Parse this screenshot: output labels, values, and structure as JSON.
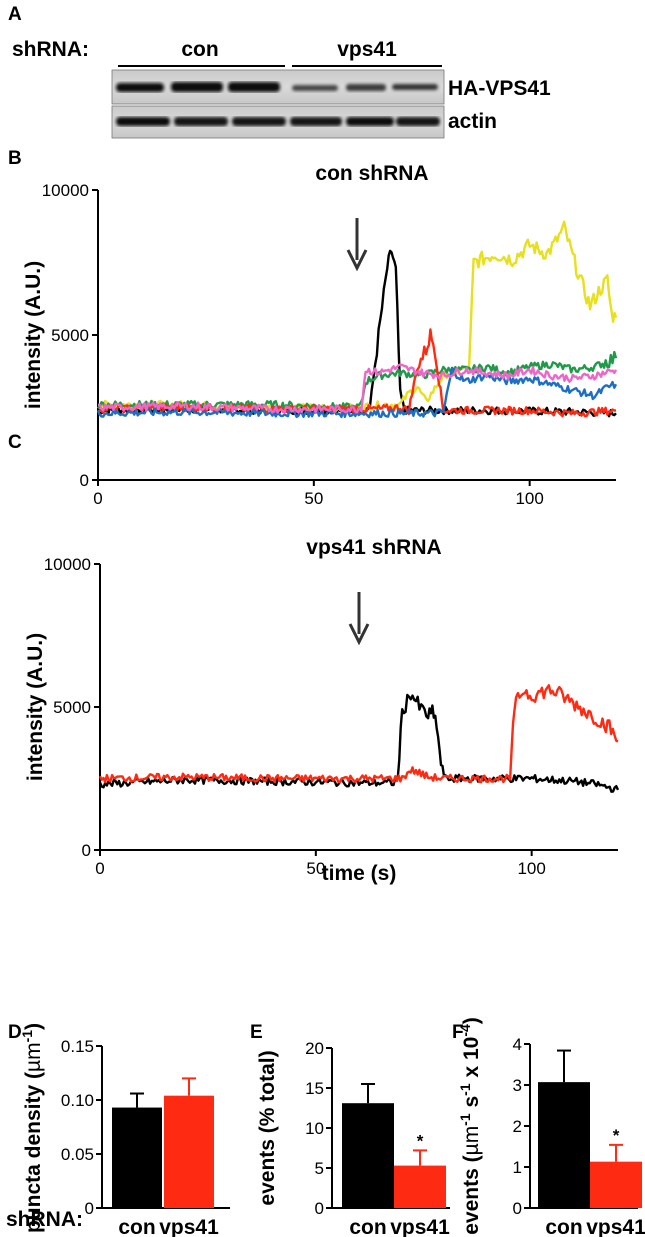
{
  "panel_a": {
    "letter": "A",
    "shrna_label": "shRNA:",
    "group_con": "con",
    "group_vps41": "vps41",
    "band_top_label": "HA-VPS41",
    "band_bottom_label": "actin"
  },
  "chart_data": [
    {
      "type": "line",
      "panel": "B",
      "title": "con shRNA",
      "xlabel": "",
      "ylabel": "intensity (A.U.)",
      "xlim": [
        0,
        120
      ],
      "ylim": [
        0,
        10000
      ],
      "xticks": [
        "0",
        "50",
        "100"
      ],
      "yticks": [
        "0",
        "5000",
        "10000"
      ],
      "arrow_at_x": 60,
      "series": [
        {
          "color": "#000000",
          "points": [
            [
              0,
              2400
            ],
            [
              20,
              2450
            ],
            [
              40,
              2400
            ],
            [
              60,
              2400
            ],
            [
              63,
              2500
            ],
            [
              65,
              5000
            ],
            [
              67,
              7300
            ],
            [
              68,
              7900
            ],
            [
              69,
              7200
            ],
            [
              70,
              3000
            ],
            [
              71,
              2400
            ],
            [
              90,
              2400
            ],
            [
              110,
              2350
            ],
            [
              120,
              2300
            ]
          ]
        },
        {
          "color": "#e6e01e",
          "points": [
            [
              0,
              2600
            ],
            [
              20,
              2600
            ],
            [
              40,
              2500
            ],
            [
              60,
              2500
            ],
            [
              66,
              2600
            ],
            [
              70,
              2600
            ],
            [
              72,
              3000
            ],
            [
              74,
              3200
            ],
            [
              76,
              2700
            ],
            [
              80,
              3600
            ],
            [
              84,
              3800
            ],
            [
              86,
              3900
            ],
            [
              87,
              7500
            ],
            [
              92,
              7800
            ],
            [
              96,
              7600
            ],
            [
              100,
              8100
            ],
            [
              104,
              7800
            ],
            [
              106,
              8200
            ],
            [
              108,
              8700
            ],
            [
              110,
              7700
            ],
            [
              112,
              6800
            ],
            [
              114,
              6000
            ],
            [
              116,
              6500
            ],
            [
              118,
              6900
            ],
            [
              119,
              5700
            ],
            [
              120,
              5600
            ]
          ]
        },
        {
          "color": "#1f9a4a",
          "points": [
            [
              0,
              2600
            ],
            [
              20,
              2600
            ],
            [
              40,
              2600
            ],
            [
              60,
              2500
            ],
            [
              61,
              2600
            ],
            [
              62,
              3400
            ],
            [
              65,
              3600
            ],
            [
              70,
              3700
            ],
            [
              75,
              3600
            ],
            [
              80,
              3800
            ],
            [
              86,
              3800
            ],
            [
              90,
              3900
            ],
            [
              95,
              3700
            ],
            [
              100,
              3900
            ],
            [
              105,
              4000
            ],
            [
              110,
              3800
            ],
            [
              115,
              3900
            ],
            [
              118,
              4100
            ],
            [
              120,
              4200
            ]
          ]
        },
        {
          "color": "#ff2a12",
          "points": [
            [
              0,
              2450
            ],
            [
              20,
              2500
            ],
            [
              40,
              2450
            ],
            [
              60,
              2450
            ],
            [
              65,
              2450
            ],
            [
              70,
              2500
            ],
            [
              72,
              2400
            ],
            [
              74,
              3900
            ],
            [
              76,
              4500
            ],
            [
              77,
              5000
            ],
            [
              78,
              4600
            ],
            [
              79,
              3400
            ],
            [
              80,
              2400
            ],
            [
              90,
              2400
            ],
            [
              100,
              2400
            ],
            [
              110,
              2300
            ],
            [
              120,
              2400
            ]
          ]
        },
        {
          "color": "#1c6fc4",
          "points": [
            [
              0,
              2300
            ],
            [
              20,
              2350
            ],
            [
              40,
              2300
            ],
            [
              60,
              2300
            ],
            [
              70,
              2300
            ],
            [
              75,
              2300
            ],
            [
              78,
              2300
            ],
            [
              80,
              2350
            ],
            [
              82,
              3800
            ],
            [
              85,
              3400
            ],
            [
              90,
              3600
            ],
            [
              95,
              3400
            ],
            [
              100,
              3500
            ],
            [
              105,
              3300
            ],
            [
              110,
              3100
            ],
            [
              115,
              2900
            ],
            [
              118,
              3200
            ],
            [
              120,
              3300
            ]
          ]
        },
        {
          "color": "#ee66c8",
          "points": [
            [
              0,
              2500
            ],
            [
              20,
              2550
            ],
            [
              40,
              2450
            ],
            [
              60,
              2450
            ],
            [
              61,
              2500
            ],
            [
              62,
              3800
            ],
            [
              65,
              3700
            ],
            [
              70,
              3900
            ],
            [
              75,
              3700
            ],
            [
              80,
              3600
            ],
            [
              85,
              3800
            ],
            [
              90,
              3700
            ],
            [
              95,
              3600
            ],
            [
              100,
              3800
            ],
            [
              105,
              3600
            ],
            [
              110,
              3500
            ],
            [
              115,
              3600
            ],
            [
              120,
              3800
            ]
          ]
        }
      ]
    },
    {
      "type": "line",
      "panel": "C",
      "title": "vps41 shRNA",
      "xlabel": "time (s)",
      "ylabel": "intensity (A.U.)",
      "xlim": [
        0,
        120
      ],
      "ylim": [
        0,
        10000
      ],
      "xticks": [
        "0",
        "50",
        "100"
      ],
      "yticks": [
        "0",
        "5000",
        "10000"
      ],
      "arrow_at_x": 60,
      "series": [
        {
          "color": "#000000",
          "points": [
            [
              0,
              2300
            ],
            [
              20,
              2450
            ],
            [
              40,
              2400
            ],
            [
              60,
              2350
            ],
            [
              68,
              2350
            ],
            [
              69,
              2500
            ],
            [
              70,
              4800
            ],
            [
              72,
              5500
            ],
            [
              74,
              5000
            ],
            [
              76,
              4700
            ],
            [
              77,
              4800
            ],
            [
              78,
              4400
            ],
            [
              79,
              3000
            ],
            [
              80,
              2500
            ],
            [
              90,
              2500
            ],
            [
              100,
              2500
            ],
            [
              110,
              2400
            ],
            [
              115,
              2300
            ],
            [
              120,
              2100
            ]
          ]
        },
        {
          "color": "#ff2a12",
          "points": [
            [
              0,
              2500
            ],
            [
              20,
              2550
            ],
            [
              40,
              2500
            ],
            [
              60,
              2500
            ],
            [
              70,
              2500
            ],
            [
              72,
              2800
            ],
            [
              74,
              2700
            ],
            [
              76,
              2550
            ],
            [
              80,
              2500
            ],
            [
              95,
              2500
            ],
            [
              96,
              5000
            ],
            [
              98,
              5600
            ],
            [
              100,
              5400
            ],
            [
              104,
              5600
            ],
            [
              106,
              5500
            ],
            [
              108,
              5300
            ],
            [
              110,
              5100
            ],
            [
              114,
              4700
            ],
            [
              116,
              4500
            ],
            [
              118,
              4300
            ],
            [
              120,
              3800
            ]
          ]
        }
      ]
    },
    {
      "type": "bar",
      "panel": "D",
      "xlabel": "",
      "ylabel_prefix": "puncta density (",
      "ylabel_unit": "µm",
      "ylabel_exp": "-1",
      "ylabel_suffix": ")",
      "categories_prefix": "shRNA:",
      "categories": [
        "con",
        "vps41"
      ],
      "values": [
        0.093,
        0.104
      ],
      "errors": [
        0.013,
        0.016
      ],
      "colors": [
        "#000000",
        "#ff2a12"
      ],
      "ylim": [
        0,
        0.15
      ],
      "yticks": [
        "0",
        "0.05",
        "0.10",
        "0.15"
      ]
    },
    {
      "type": "bar",
      "panel": "E",
      "xlabel": "",
      "ylabel": "events (% total)",
      "categories": [
        "con",
        "vps41"
      ],
      "values": [
        13.1,
        5.3
      ],
      "errors": [
        2.4,
        1.9
      ],
      "colors": [
        "#000000",
        "#ff2a12"
      ],
      "significance": [
        "",
        "*"
      ],
      "ylim": [
        0,
        20
      ],
      "yticks": [
        "0",
        "5",
        "10",
        "15",
        "20"
      ]
    },
    {
      "type": "bar",
      "panel": "F",
      "xlabel": "",
      "ylabel_prefix": "events (",
      "ylabel_unit": "µm",
      "ylabel_exp": "-1",
      "ylabel_unit2": " s",
      "ylabel_exp2": "-1",
      "ylabel_mid": " x 10",
      "ylabel_exp3": "-4",
      "ylabel_suffix": ")",
      "categories": [
        "con",
        "vps41"
      ],
      "values": [
        3.07,
        1.13
      ],
      "errors": [
        0.77,
        0.41
      ],
      "colors": [
        "#000000",
        "#ff2a12"
      ],
      "significance": [
        "",
        "*"
      ],
      "ylim": [
        0,
        4
      ],
      "yticks": [
        "0",
        "1",
        "2",
        "3",
        "4"
      ]
    }
  ]
}
